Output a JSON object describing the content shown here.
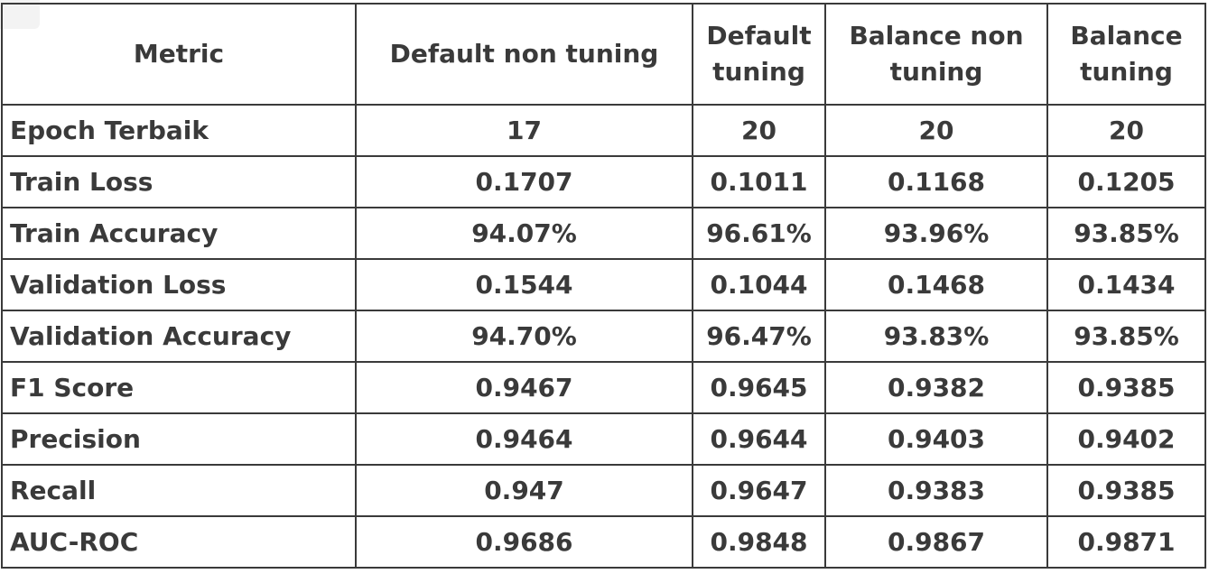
{
  "table": {
    "headers": [
      "Metric",
      "Default non tuning",
      "Default tuning",
      "Balance non tuning",
      "Balance tuning"
    ],
    "rows": [
      [
        "Epoch Terbaik",
        "17",
        "20",
        "20",
        "20"
      ],
      [
        "Train Loss",
        "0.1707",
        "0.1011",
        "0.1168",
        "0.1205"
      ],
      [
        "Train Accuracy",
        "94.07%",
        "96.61%",
        "93.96%",
        "93.85%"
      ],
      [
        "Validation Loss",
        "0.1544",
        "0.1044",
        "0.1468",
        "0.1434"
      ],
      [
        "Validation Accuracy",
        "94.70%",
        "96.47%",
        "93.83%",
        "93.85%"
      ],
      [
        "F1 Score",
        "0.9467",
        "0.9645",
        "0.9382",
        "0.9385"
      ],
      [
        "Precision",
        "0.9464",
        "0.9644",
        "0.9403",
        "0.9402"
      ],
      [
        "Recall",
        "0.947",
        "0.9647",
        "0.9383",
        "0.9385"
      ],
      [
        "AUC-ROC",
        "0.9686",
        "0.9848",
        "0.9867",
        "0.9871"
      ]
    ]
  }
}
